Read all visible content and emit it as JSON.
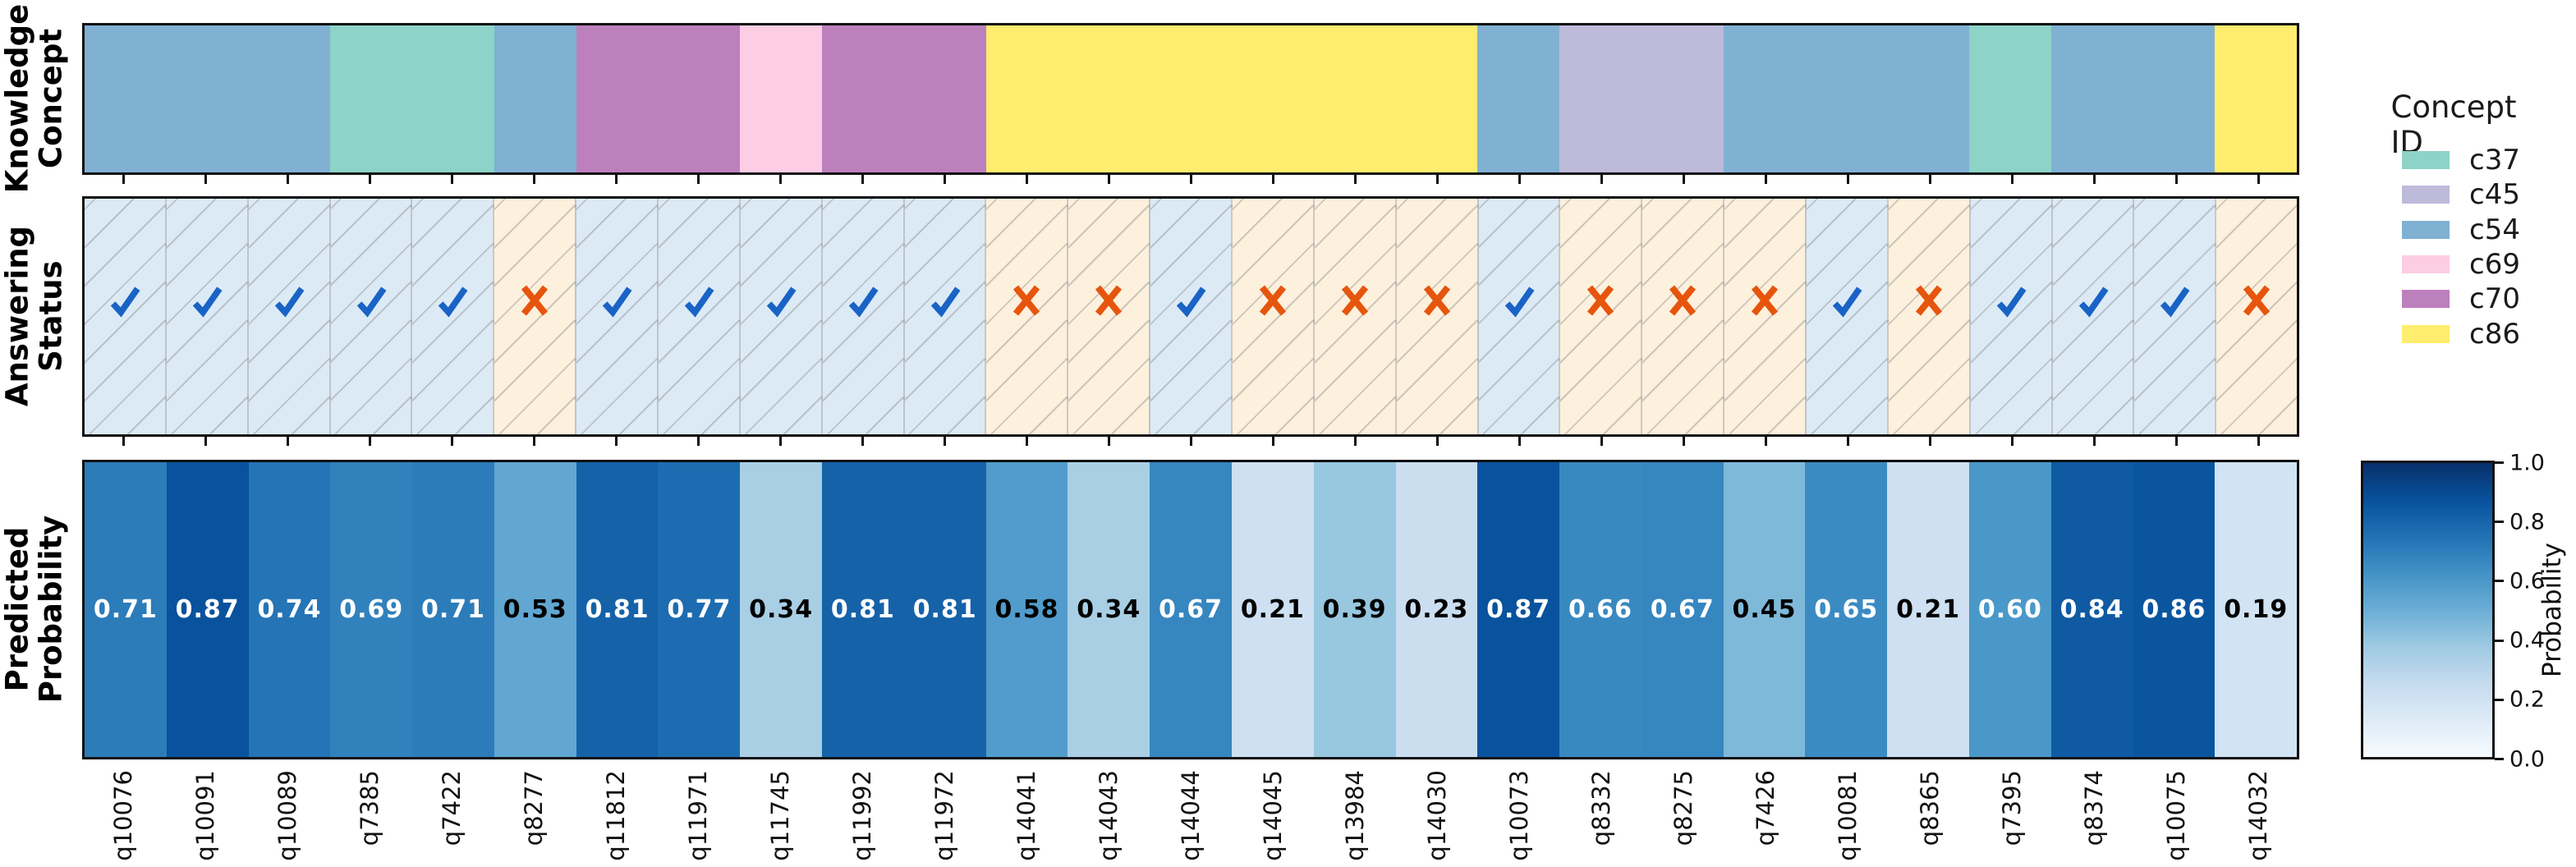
{
  "y_axis_labels": {
    "panel1": [
      "Knowledge",
      "Concept"
    ],
    "panel2": [
      "Answering",
      "Status"
    ],
    "panel3": [
      "Predicted",
      "Probability"
    ]
  },
  "legend": {
    "title": "Concept ID",
    "entries": [
      {
        "id": "c37",
        "color": "#8dd3c7"
      },
      {
        "id": "c45",
        "color": "#bebada"
      },
      {
        "id": "c54",
        "color": "#80b1d3"
      },
      {
        "id": "c69",
        "color": "#fccde5"
      },
      {
        "id": "c70",
        "color": "#bc80bd"
      },
      {
        "id": "c86",
        "color": "#ffed6f"
      }
    ]
  },
  "colorbar": {
    "label": "Probability",
    "tick_labels": [
      "1.0",
      "0.8",
      "0.6",
      "0.4",
      "0.2",
      "0.0"
    ],
    "tick_values": [
      1.0,
      0.8,
      0.6,
      0.4,
      0.2,
      0.0
    ],
    "range": [
      0.0,
      1.0
    ],
    "colormap": "Blues"
  },
  "status_styles": {
    "correct_bg": "#dceaf6",
    "wrong_bg": "#fdf0dd",
    "hatch_color": "rgba(145,145,145,0.45)",
    "check_color": "#1a63c6",
    "cross_color": "#e6550d"
  },
  "chart_data": {
    "type": "heatmap",
    "rows": [
      "Knowledge Concept",
      "Answering Status",
      "Predicted Probability"
    ],
    "x": [
      "q10076",
      "q10091",
      "q10089",
      "q7385",
      "q7422",
      "q8277",
      "q11812",
      "q11971",
      "q11745",
      "q11992",
      "q11972",
      "q14041",
      "q14043",
      "q14044",
      "q14045",
      "q13984",
      "q14030",
      "q10073",
      "q8332",
      "q8275",
      "q7426",
      "q10081",
      "q8365",
      "q7395",
      "q8374",
      "q10075",
      "q14032"
    ],
    "concepts": [
      "c54",
      "c54",
      "c54",
      "c37",
      "c37",
      "c54",
      "c70",
      "c70",
      "c69",
      "c70",
      "c70",
      "c86",
      "c86",
      "c86",
      "c86",
      "c86",
      "c86",
      "c54",
      "c45",
      "c45",
      "c54",
      "c54",
      "c54",
      "c37",
      "c54",
      "c54",
      "c86"
    ],
    "status": [
      "correct",
      "correct",
      "correct",
      "correct",
      "correct",
      "wrong",
      "correct",
      "correct",
      "correct",
      "correct",
      "correct",
      "wrong",
      "wrong",
      "correct",
      "wrong",
      "wrong",
      "wrong",
      "correct",
      "wrong",
      "wrong",
      "wrong",
      "correct",
      "wrong",
      "correct",
      "correct",
      "correct",
      "wrong"
    ],
    "probabilities": [
      0.71,
      0.87,
      0.74,
      0.69,
      0.71,
      0.53,
      0.81,
      0.77,
      0.34,
      0.81,
      0.81,
      0.58,
      0.34,
      0.67,
      0.21,
      0.39,
      0.23,
      0.87,
      0.66,
      0.67,
      0.45,
      0.65,
      0.21,
      0.6,
      0.84,
      0.86,
      0.19
    ],
    "probability_text_threshold_white": 0.6
  }
}
